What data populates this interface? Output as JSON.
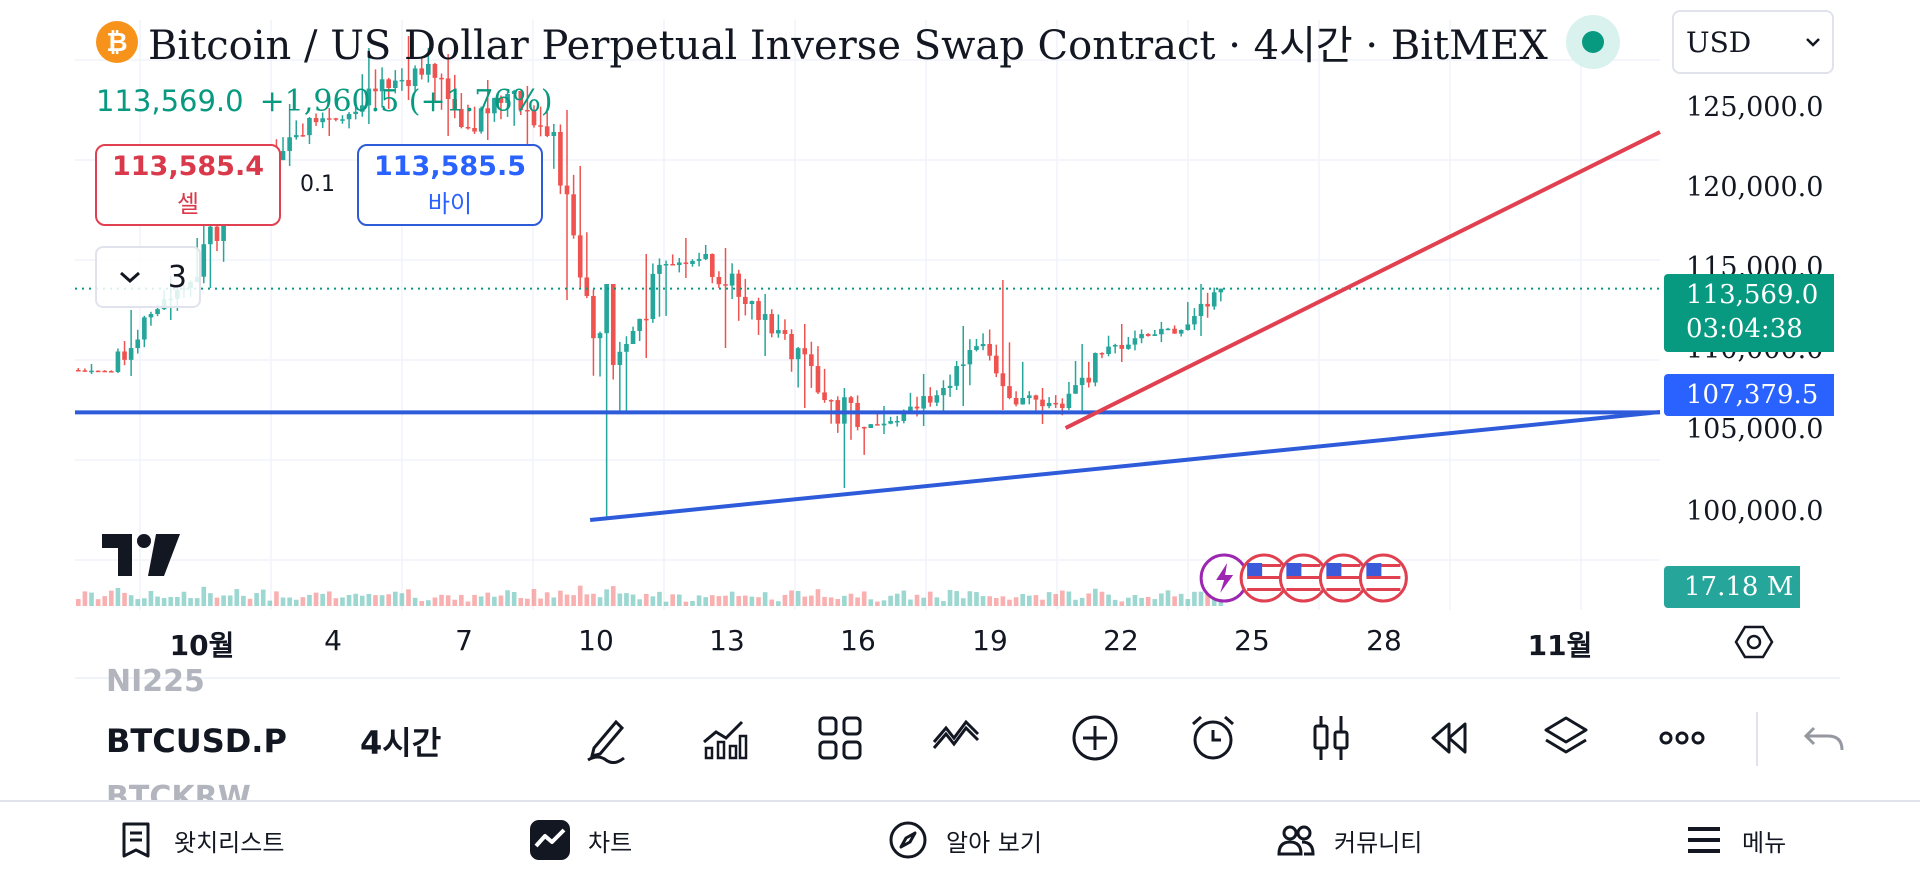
{
  "header": {
    "title": "Bitcoin / US Dollar Perpetual Inverse Swap Contract · 4시간 · BitMEX",
    "coin_icon": "bitcoin-icon",
    "status_icon": "live-status-dot",
    "last_price": "113,569.0",
    "change": "+1,960.5 (+1.76%)",
    "currency": "USD"
  },
  "trade": {
    "sell_price": "113,585.4",
    "sell_label": "셀",
    "spread": "0.1",
    "buy_price": "113,585.5",
    "buy_label": "바이",
    "quantity": "3"
  },
  "price_axis": {
    "labels": [
      "125,000.0",
      "120,000.0",
      "115,000.0",
      "110,000.0",
      "105,000.0",
      "100,000.0"
    ],
    "last_price_tag": "113,569.0",
    "countdown": "03:04:38",
    "level_tag": "107,379.5",
    "volume_tag": "17.18 M"
  },
  "time_axis": {
    "labels": [
      "10월",
      "4",
      "7",
      "10",
      "13",
      "16",
      "19",
      "22",
      "25",
      "28",
      "11월"
    ]
  },
  "symbol_bar": {
    "ghost_above": "NI225",
    "symbol": "BTCUSD.P",
    "interval": "4시간",
    "ghost_below": "BTCKRW"
  },
  "toolbar": {
    "icons": [
      "drawing-pen-icon",
      "indicators-icon",
      "layouts-grid-icon",
      "patterns-icon",
      "add-circle-icon",
      "alarm-clock-icon",
      "candlestick-type-icon",
      "replay-rewind-icon",
      "layers-icon",
      "more-dots-icon",
      "undo-arrow-icon"
    ]
  },
  "bottom_nav": {
    "watchlist": "왓치리스트",
    "chart": "차트",
    "explore": "알아 보기",
    "community": "커뮤니티",
    "menu": "메뉴"
  },
  "colors": {
    "up": "#26a69a",
    "down": "#ef5350",
    "line_red": "#e0404f",
    "line_blue": "#2e5bd9",
    "accent_green": "#089981"
  },
  "chart_data": {
    "type": "candlestick",
    "x_range": [
      "2025-09-28",
      "2025-11-07"
    ],
    "ylim": [
      98000,
      127000
    ],
    "y_ticks": [
      100000,
      105000,
      110000,
      115000,
      120000,
      125000
    ],
    "candles_ohlc_4h": [
      {
        "date": "2025-09-28",
        "o": 109500,
        "h": 109800,
        "l": 109300,
        "c": 109400
      },
      {
        "date": "2025-09-29",
        "o": 109400,
        "h": 112500,
        "l": 109200,
        "c": 112300
      },
      {
        "date": "2025-09-30",
        "o": 112300,
        "h": 114200,
        "l": 112000,
        "c": 113900
      },
      {
        "date": "2025-10-01",
        "o": 113900,
        "h": 118500,
        "l": 113600,
        "c": 118200
      },
      {
        "date": "2025-10-02",
        "o": 118200,
        "h": 120800,
        "l": 117900,
        "c": 120200
      },
      {
        "date": "2025-10-03",
        "o": 120200,
        "h": 122800,
        "l": 119700,
        "c": 122100
      },
      {
        "date": "2025-10-04",
        "o": 122100,
        "h": 122600,
        "l": 121200,
        "c": 122300
      },
      {
        "date": "2025-10-05",
        "o": 122300,
        "h": 125600,
        "l": 121800,
        "c": 123600
      },
      {
        "date": "2025-10-06",
        "o": 123600,
        "h": 126200,
        "l": 123000,
        "c": 124800
      },
      {
        "date": "2025-10-07",
        "o": 124800,
        "h": 125300,
        "l": 121200,
        "c": 121600
      },
      {
        "date": "2025-10-08",
        "o": 121600,
        "h": 124000,
        "l": 121000,
        "c": 123300
      },
      {
        "date": "2025-10-09",
        "o": 123300,
        "h": 123700,
        "l": 120500,
        "c": 121200
      },
      {
        "date": "2025-10-10",
        "o": 121200,
        "h": 122500,
        "l": 113000,
        "c": 113200
      },
      {
        "date": "2025-10-11",
        "o": 113200,
        "h": 113800,
        "l": 102000,
        "c": 110800
      },
      {
        "date": "2025-10-12",
        "o": 110800,
        "h": 115300,
        "l": 110100,
        "c": 114800
      },
      {
        "date": "2025-10-13",
        "o": 114800,
        "h": 116100,
        "l": 114100,
        "c": 115300
      },
      {
        "date": "2025-10-14",
        "o": 115300,
        "h": 115600,
        "l": 110600,
        "c": 112800
      },
      {
        "date": "2025-10-15",
        "o": 112800,
        "h": 113300,
        "l": 110200,
        "c": 111300
      },
      {
        "date": "2025-10-16",
        "o": 111300,
        "h": 111800,
        "l": 107600,
        "c": 108000
      },
      {
        "date": "2025-10-17",
        "o": 108000,
        "h": 108600,
        "l": 103600,
        "c": 106600
      },
      {
        "date": "2025-10-18",
        "o": 106600,
        "h": 107700,
        "l": 106300,
        "c": 107300
      },
      {
        "date": "2025-10-19",
        "o": 107300,
        "h": 109300,
        "l": 106700,
        "c": 108600
      },
      {
        "date": "2025-10-20",
        "o": 108600,
        "h": 111700,
        "l": 107700,
        "c": 110800
      },
      {
        "date": "2025-10-21",
        "o": 110800,
        "h": 114000,
        "l": 107500,
        "c": 108100
      },
      {
        "date": "2025-10-22",
        "o": 108100,
        "h": 108600,
        "l": 106800,
        "c": 107600
      },
      {
        "date": "2025-10-23",
        "o": 107600,
        "h": 110800,
        "l": 107400,
        "c": 110300
      },
      {
        "date": "2025-10-24",
        "o": 110300,
        "h": 111800,
        "l": 109900,
        "c": 111300
      },
      {
        "date": "2025-10-25",
        "o": 111300,
        "h": 111900,
        "l": 110900,
        "c": 111500
      },
      {
        "date": "2025-10-26",
        "o": 111500,
        "h": 113800,
        "l": 111200,
        "c": 113569
      }
    ],
    "horizontal_line": {
      "name": "",
      "value": 107379.5
    },
    "trend_lines": [
      {
        "color": "blue",
        "from": {
          "date": "2025-10-11",
          "value": 102000
        },
        "to": {
          "date": "2025-11-07",
          "value": 107400
        }
      },
      {
        "color": "red",
        "from": {
          "date": "2025-10-23",
          "value": 106600
        },
        "to": {
          "date": "2025-11-07",
          "value": 121400
        }
      }
    ],
    "last_price": 113569.0,
    "volume_last": "17.18 M",
    "event_markers": [
      {
        "date": "2025-10-27",
        "icons": [
          "bolt-event-icon",
          "us-flag-icon"
        ]
      },
      {
        "date": "2025-10-29",
        "icons": [
          "us-flag-icon",
          "us-flag-icon",
          "us-flag-icon"
        ]
      }
    ]
  }
}
